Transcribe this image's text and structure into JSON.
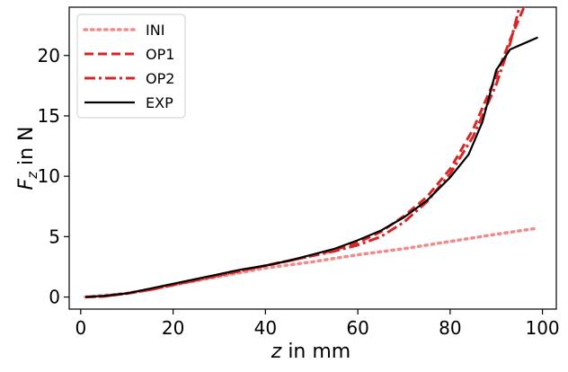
{
  "chart_data": {
    "type": "line",
    "title": "",
    "xlabel_var": "z",
    "xlabel_rest": " in mm",
    "ylabel_var": "F",
    "ylabel_sub": "z",
    "ylabel_rest": " in N",
    "xlim": [
      -2.5,
      103
    ],
    "ylim": [
      -1.0,
      24.0
    ],
    "xticks": [
      0,
      20,
      40,
      60,
      80,
      100
    ],
    "yticks": [
      0,
      5,
      10,
      15,
      20
    ],
    "legend_position": "top-left",
    "series": [
      {
        "name": "INI",
        "color": "#f08c8c",
        "style": "dotted",
        "x": [
          1,
          10,
          20,
          30,
          40,
          50,
          60,
          70,
          80,
          90,
          99
        ],
        "y": [
          0.0,
          0.3,
          1.0,
          1.7,
          2.4,
          2.9,
          3.5,
          4.0,
          4.6,
          5.2,
          5.7
        ]
      },
      {
        "name": "OP1",
        "color": "#d62728",
        "style": "dashed",
        "x": [
          1,
          5,
          10,
          15,
          20,
          25,
          30,
          35,
          40,
          45,
          50,
          55,
          60,
          65,
          70,
          75,
          80,
          85,
          90,
          93,
          96
        ],
        "y": [
          0.0,
          0.05,
          0.3,
          0.6,
          1.0,
          1.4,
          1.8,
          2.2,
          2.6,
          3.0,
          3.4,
          3.9,
          4.5,
          5.4,
          6.7,
          8.3,
          10.6,
          13.9,
          18.3,
          21.3,
          24.0
        ]
      },
      {
        "name": "OP2",
        "color": "#d62728",
        "style": "dashdot",
        "x": [
          1,
          5,
          10,
          15,
          20,
          25,
          30,
          35,
          40,
          45,
          50,
          55,
          60,
          65,
          70,
          75,
          80,
          85,
          90,
          93,
          95
        ],
        "y": [
          0.0,
          0.05,
          0.3,
          0.6,
          1.0,
          1.4,
          1.8,
          2.2,
          2.6,
          3.0,
          3.4,
          3.8,
          4.3,
          5.0,
          6.2,
          7.9,
          10.2,
          13.3,
          17.6,
          21.0,
          24.0
        ]
      },
      {
        "name": "EXP",
        "color": "#000000",
        "style": "solid",
        "x": [
          1,
          5,
          10,
          15,
          20,
          25,
          30,
          35,
          40,
          45,
          50,
          55,
          60,
          65,
          70,
          75,
          80,
          84,
          87,
          90,
          93,
          96,
          99
        ],
        "y": [
          0.0,
          0.1,
          0.3,
          0.7,
          1.1,
          1.5,
          1.9,
          2.3,
          2.6,
          3.0,
          3.5,
          4.0,
          4.7,
          5.5,
          6.6,
          8.0,
          9.9,
          11.8,
          14.5,
          18.8,
          20.5,
          21.0,
          21.5
        ]
      }
    ]
  }
}
